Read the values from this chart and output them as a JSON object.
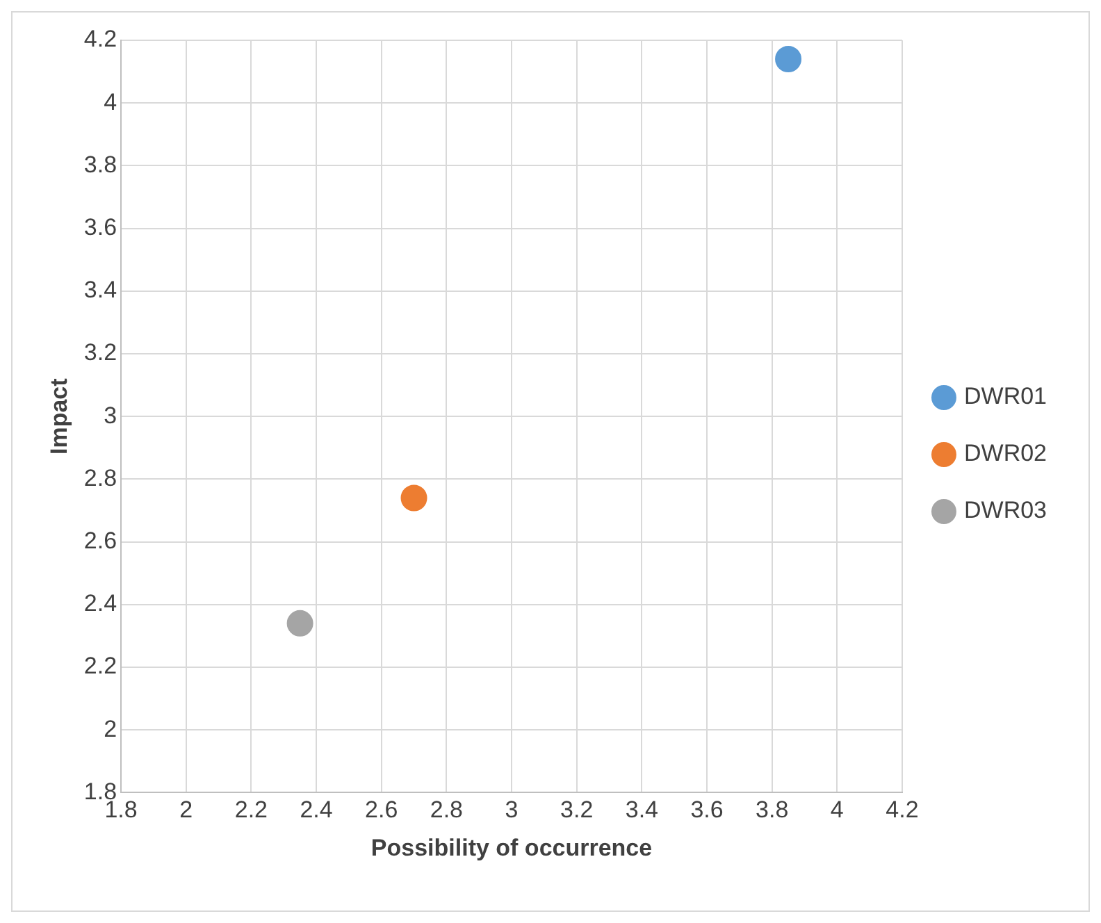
{
  "chart_data": {
    "type": "scatter",
    "xlabel": "Possibility of occurrence",
    "ylabel": "Impact",
    "series": [
      {
        "name": "DWR01",
        "color": "#5b9bd5",
        "x": [
          3.85
        ],
        "values": [
          4.14
        ]
      },
      {
        "name": "DWR02",
        "color": "#ed7d31",
        "x": [
          2.7
        ],
        "values": [
          2.74
        ]
      },
      {
        "name": "DWR03",
        "color": "#a5a5a5",
        "x": [
          2.35
        ],
        "values": [
          2.34
        ]
      }
    ],
    "xlim": [
      1.8,
      4.2
    ],
    "xticks": [
      1.8,
      2,
      2.2,
      2.4,
      2.6,
      2.8,
      3,
      3.2,
      3.4,
      3.6,
      3.8,
      4,
      4.2
    ],
    "ylim": [
      1.8,
      4.2
    ],
    "yticks": [
      1.8,
      2,
      2.2,
      2.4,
      2.6,
      2.8,
      3,
      3.2,
      3.4,
      3.6,
      3.8,
      4,
      4.2
    ],
    "grid": true,
    "legend": "right",
    "marker": "circle"
  }
}
